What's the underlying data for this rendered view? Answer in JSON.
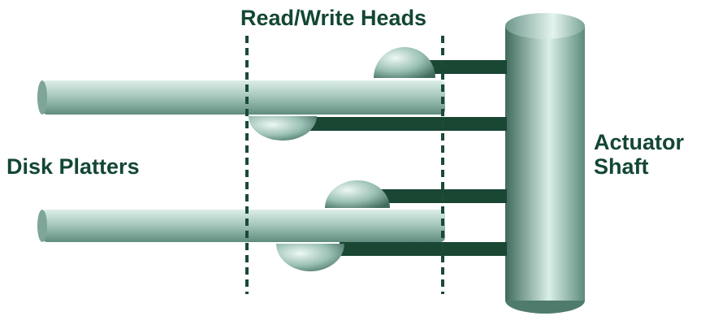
{
  "labels": {
    "heads": "Read/Write Heads",
    "platters": "Disk Platters",
    "shaft_line1": "Actuator",
    "shaft_line2": "Shaft"
  },
  "colors": {
    "text": "#134733",
    "dashed_line": "#1b4a38",
    "arm": "#1a4634",
    "metal_light": "#d9efe8",
    "metal_mid": "#8fb8ab",
    "metal_dark": "#3f6a5c"
  },
  "components": {
    "platter_count": 2,
    "head_count": 4,
    "arm_count": 4
  }
}
